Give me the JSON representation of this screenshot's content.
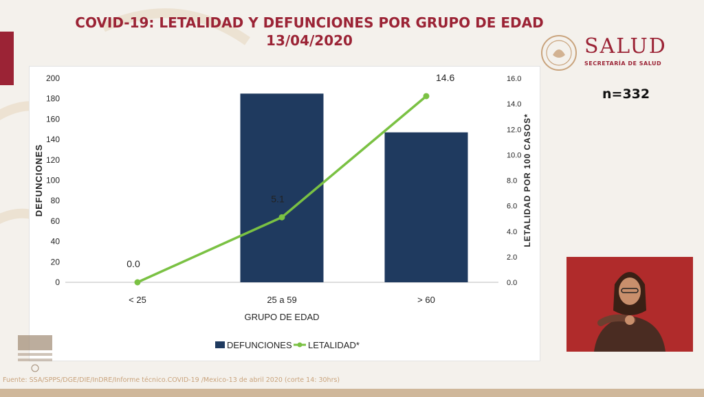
{
  "title": {
    "line1": "COVID-19: LETALIDAD Y DEFUNCIONES POR GRUPO DE EDAD",
    "line2": "13/04/2020"
  },
  "logo": {
    "name": "SALUD",
    "subtitle": "SECRETARÍA DE SALUD"
  },
  "sample_size": "n=332",
  "footer": "Fuente: SSA/SPPS/DGE/DIE/InDRE/Informe técnico.COVID-19 /Mexico-13 de abril 2020 (corte 14: 30hrs)",
  "colors": {
    "accent": "#9b2335",
    "bar": "#1f3a5f",
    "line": "#7ac143"
  },
  "chart_data": {
    "type": "bar",
    "title": "COVID-19: LETALIDAD Y DEFUNCIONES POR GRUPO DE EDAD",
    "categories": [
      "< 25",
      "25 a 59",
      "> 60"
    ],
    "xlabel": "GRUPO DE EDAD",
    "ylabel": "DEFUNCIONES",
    "y2label": "LETALIDAD POR 100 CASOS*",
    "ylim": [
      0,
      200
    ],
    "y2lim": [
      0,
      16
    ],
    "yticks": [
      "0",
      "20",
      "40",
      "60",
      "80",
      "100",
      "120",
      "140",
      "160",
      "180",
      "200"
    ],
    "y2ticks": [
      "0.0",
      "2.0",
      "4.0",
      "6.0",
      "8.0",
      "10.0",
      "12.0",
      "14.0",
      "16.0"
    ],
    "series": [
      {
        "name": "DEFUNCIONES",
        "type": "bar",
        "axis": "left",
        "values": [
          0,
          185,
          147
        ]
      },
      {
        "name": "LETALIDAD*",
        "type": "line",
        "axis": "right",
        "values": [
          0.0,
          5.1,
          14.6
        ],
        "labels": [
          "0.0",
          "5.1",
          "14.6"
        ]
      }
    ],
    "legend_position": "bottom"
  }
}
